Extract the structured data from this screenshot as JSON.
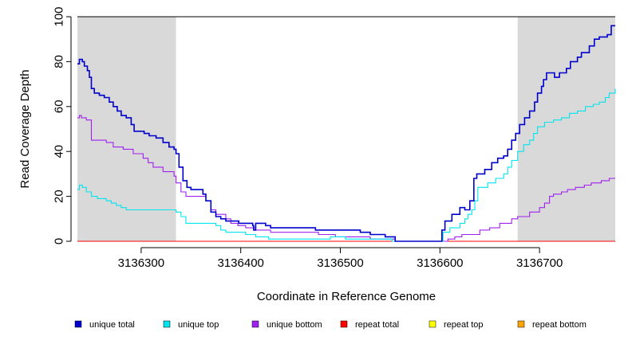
{
  "chart_data": {
    "type": "line",
    "title": "",
    "xlabel": "Coordinate in Reference Genome",
    "ylabel": "Read Coverage Depth",
    "xlim": [
      3136236,
      3136776
    ],
    "ylim": [
      0,
      100
    ],
    "x_ticks": [
      3136300,
      3136400,
      3136500,
      3136600,
      3136700
    ],
    "y_ticks": [
      0,
      20,
      40,
      60,
      80,
      100
    ],
    "shaded_regions": [
      [
        3136236,
        3136335
      ],
      [
        3136678,
        3136776
      ]
    ],
    "series": [
      {
        "name": "unique total",
        "color": "#0000CD",
        "points": [
          [
            3136236,
            79
          ],
          [
            3136238,
            81
          ],
          [
            3136241,
            80
          ],
          [
            3136243,
            78
          ],
          [
            3136246,
            76
          ],
          [
            3136248,
            73
          ],
          [
            3136250,
            68
          ],
          [
            3136253,
            66
          ],
          [
            3136258,
            65
          ],
          [
            3136263,
            64
          ],
          [
            3136268,
            62
          ],
          [
            3136272,
            60
          ],
          [
            3136276,
            58
          ],
          [
            3136280,
            56
          ],
          [
            3136285,
            55
          ],
          [
            3136290,
            52
          ],
          [
            3136293,
            49
          ],
          [
            3136303,
            48
          ],
          [
            3136308,
            47
          ],
          [
            3136315,
            46
          ],
          [
            3136322,
            44
          ],
          [
            3136328,
            42
          ],
          [
            3136333,
            41
          ],
          [
            3136335,
            39
          ],
          [
            3136338,
            33
          ],
          [
            3136342,
            27
          ],
          [
            3136346,
            24
          ],
          [
            3136350,
            23
          ],
          [
            3136362,
            21
          ],
          [
            3136365,
            18
          ],
          [
            3136370,
            13
          ],
          [
            3136375,
            11
          ],
          [
            3136380,
            10
          ],
          [
            3136385,
            9
          ],
          [
            3136398,
            8
          ],
          [
            3136412,
            7
          ],
          [
            3136413,
            5
          ],
          [
            3136415,
            8
          ],
          [
            3136425,
            7
          ],
          [
            3136430,
            6
          ],
          [
            3136440,
            6
          ],
          [
            3136455,
            6
          ],
          [
            3136475,
            5
          ],
          [
            3136520,
            4
          ],
          [
            3136530,
            3
          ],
          [
            3136545,
            2
          ],
          [
            3136555,
            0
          ],
          [
            3136600,
            0
          ],
          [
            3136602,
            5
          ],
          [
            3136605,
            9
          ],
          [
            3136612,
            12
          ],
          [
            3136620,
            15
          ],
          [
            3136625,
            14
          ],
          [
            3136630,
            18
          ],
          [
            3136634,
            28
          ],
          [
            3136637,
            30
          ],
          [
            3136645,
            32
          ],
          [
            3136652,
            35
          ],
          [
            3136658,
            37
          ],
          [
            3136664,
            38
          ],
          [
            3136668,
            41
          ],
          [
            3136672,
            45
          ],
          [
            3136676,
            48
          ],
          [
            3136680,
            52
          ],
          [
            3136685,
            55
          ],
          [
            3136690,
            58
          ],
          [
            3136695,
            62
          ],
          [
            3136698,
            66
          ],
          [
            3136702,
            69
          ],
          [
            3136704,
            72
          ],
          [
            3136707,
            75
          ],
          [
            3136715,
            73
          ],
          [
            3136720,
            75
          ],
          [
            3136727,
            77
          ],
          [
            3136731,
            80
          ],
          [
            3136738,
            82
          ],
          [
            3136742,
            84
          ],
          [
            3136750,
            87
          ],
          [
            3136755,
            90
          ],
          [
            3136760,
            91
          ],
          [
            3136768,
            92
          ],
          [
            3136772,
            96
          ],
          [
            3136776,
            96
          ]
        ]
      },
      {
        "name": "unique top",
        "color": "#00E5EE",
        "points": [
          [
            3136236,
            23
          ],
          [
            3136238,
            25
          ],
          [
            3136241,
            24
          ],
          [
            3136245,
            22
          ],
          [
            3136250,
            20
          ],
          [
            3136256,
            19
          ],
          [
            3136265,
            18
          ],
          [
            3136270,
            17
          ],
          [
            3136275,
            16
          ],
          [
            3136280,
            15
          ],
          [
            3136285,
            14
          ],
          [
            3136335,
            13
          ],
          [
            3136340,
            11
          ],
          [
            3136345,
            8
          ],
          [
            3136375,
            7
          ],
          [
            3136380,
            5
          ],
          [
            3136385,
            4
          ],
          [
            3136405,
            3
          ],
          [
            3136415,
            2
          ],
          [
            3136428,
            1
          ],
          [
            3136480,
            1
          ],
          [
            3136490,
            2
          ],
          [
            3136505,
            1
          ],
          [
            3136530,
            1
          ],
          [
            3136540,
            1
          ],
          [
            3136552,
            0
          ],
          [
            3136600,
            0
          ],
          [
            3136603,
            4
          ],
          [
            3136610,
            6
          ],
          [
            3136620,
            8
          ],
          [
            3136625,
            10
          ],
          [
            3136628,
            12
          ],
          [
            3136632,
            14
          ],
          [
            3136635,
            18
          ],
          [
            3136638,
            24
          ],
          [
            3136648,
            26
          ],
          [
            3136656,
            28
          ],
          [
            3136664,
            30
          ],
          [
            3136668,
            33
          ],
          [
            3136672,
            36
          ],
          [
            3136678,
            40
          ],
          [
            3136684,
            43
          ],
          [
            3136690,
            45
          ],
          [
            3136694,
            48
          ],
          [
            3136698,
            51
          ],
          [
            3136705,
            53
          ],
          [
            3136714,
            54
          ],
          [
            3136722,
            55
          ],
          [
            3136730,
            57
          ],
          [
            3136738,
            58
          ],
          [
            3136746,
            60
          ],
          [
            3136754,
            61
          ],
          [
            3136760,
            62
          ],
          [
            3136766,
            64
          ],
          [
            3136770,
            66
          ],
          [
            3136776,
            68
          ]
        ]
      },
      {
        "name": "unique bottom",
        "color": "#A020F0",
        "points": [
          [
            3136236,
            55
          ],
          [
            3136238,
            56
          ],
          [
            3136240,
            55
          ],
          [
            3136245,
            54
          ],
          [
            3136250,
            45
          ],
          [
            3136265,
            44
          ],
          [
            3136272,
            42
          ],
          [
            3136282,
            41
          ],
          [
            3136292,
            39
          ],
          [
            3136302,
            37
          ],
          [
            3136307,
            35
          ],
          [
            3136312,
            33
          ],
          [
            3136322,
            31
          ],
          [
            3136333,
            29
          ],
          [
            3136335,
            26
          ],
          [
            3136340,
            22
          ],
          [
            3136345,
            20
          ],
          [
            3136365,
            18
          ],
          [
            3136370,
            14
          ],
          [
            3136375,
            12
          ],
          [
            3136385,
            10
          ],
          [
            3136390,
            8
          ],
          [
            3136397,
            7
          ],
          [
            3136405,
            6
          ],
          [
            3136415,
            5
          ],
          [
            3136430,
            4
          ],
          [
            3136460,
            4
          ],
          [
            3136470,
            4
          ],
          [
            3136478,
            3
          ],
          [
            3136495,
            2
          ],
          [
            3136520,
            2
          ],
          [
            3136530,
            1
          ],
          [
            3136555,
            0
          ],
          [
            3136600,
            0
          ],
          [
            3136608,
            1
          ],
          [
            3136615,
            2
          ],
          [
            3136622,
            3
          ],
          [
            3136640,
            5
          ],
          [
            3136650,
            6
          ],
          [
            3136660,
            8
          ],
          [
            3136672,
            10
          ],
          [
            3136678,
            11
          ],
          [
            3136690,
            13
          ],
          [
            3136700,
            15
          ],
          [
            3136705,
            17
          ],
          [
            3136710,
            20
          ],
          [
            3136714,
            21
          ],
          [
            3136722,
            22
          ],
          [
            3136728,
            23
          ],
          [
            3136736,
            24
          ],
          [
            3136745,
            25
          ],
          [
            3136752,
            26
          ],
          [
            3136762,
            27
          ],
          [
            3136770,
            28
          ],
          [
            3136776,
            28
          ]
        ]
      },
      {
        "name": "repeat total",
        "color": "#FF0000",
        "points": [
          [
            3136236,
            0
          ],
          [
            3136776,
            0
          ]
        ]
      },
      {
        "name": "repeat top",
        "color": "#FFFF00",
        "points": [
          [
            3136236,
            0
          ],
          [
            3136776,
            0
          ]
        ]
      },
      {
        "name": "repeat bottom",
        "color": "#FFA500",
        "points": [
          [
            3136236,
            0
          ],
          [
            3136776,
            0
          ]
        ]
      }
    ],
    "legend": {
      "placement": "bottom",
      "entries": [
        "unique total",
        "unique top",
        "unique bottom",
        "repeat total",
        "repeat top",
        "repeat bottom"
      ]
    }
  }
}
